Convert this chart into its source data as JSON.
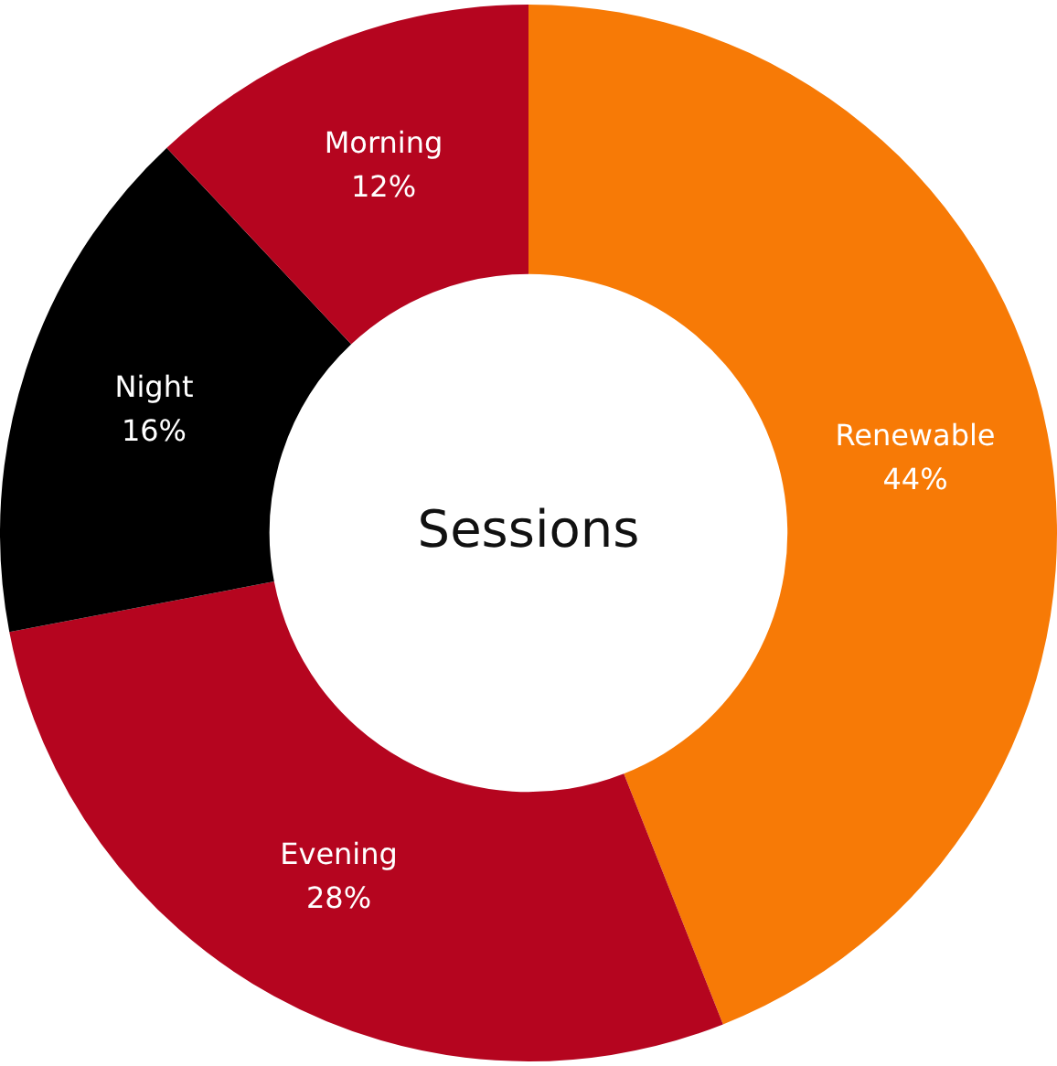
{
  "chart_data": {
    "type": "donut",
    "title": "Sessions",
    "categories": [
      "Renewable",
      "Evening",
      "Night",
      "Morning"
    ],
    "values": [
      44,
      28,
      16,
      12
    ],
    "colors": [
      "#f77a06",
      "#b5051f",
      "#000000",
      "#b5051f"
    ],
    "value_labels": [
      "44%",
      "28%",
      "16%",
      "12%"
    ],
    "legend": false
  }
}
